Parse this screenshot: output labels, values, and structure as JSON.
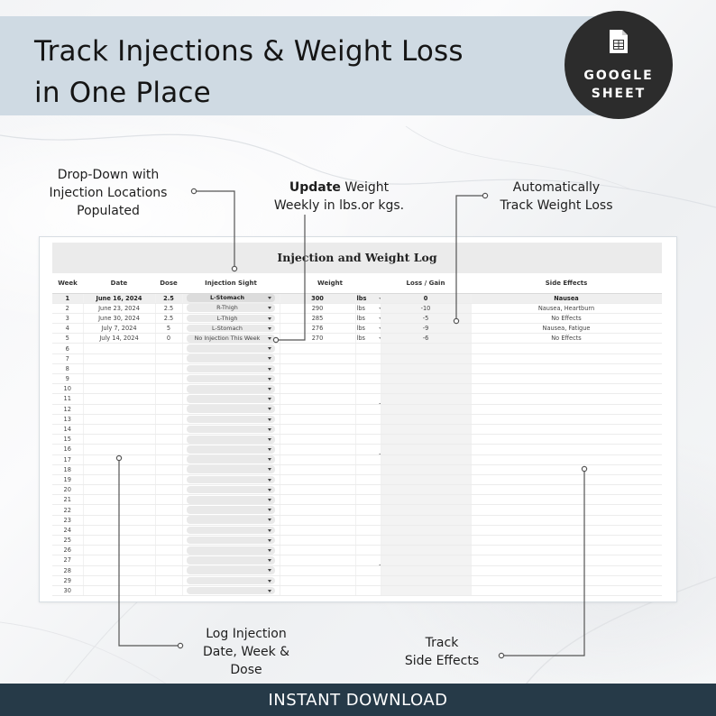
{
  "header": {
    "title_line1": "Track Injections & Weight Loss",
    "title_line2": "in One Place",
    "band_color": "#cfdae3"
  },
  "badge": {
    "icon": "spreadsheet-icon",
    "line1": "GOOGLE",
    "line2": "SHEET"
  },
  "callouts": {
    "dropdown": [
      "Drop-Down with",
      "Injection Locations",
      "Populated"
    ],
    "update_bold": "Update",
    "update_rest1": " Weight",
    "update_line2": "Weekly in lbs.or kgs.",
    "auto": [
      "Automatically",
      "Track Weight Loss"
    ],
    "log": [
      "Log Injection",
      "Date, Week &",
      "Dose"
    ],
    "side": [
      "Track",
      "Side Effects"
    ]
  },
  "sheet": {
    "title": "Injection and Weight Log",
    "headers": {
      "week": "Week",
      "date": "Date",
      "dose": "Dose",
      "site": "Injection Sight",
      "weight": "Weight",
      "loss": "Loss / Gain",
      "side": "Side Effects"
    },
    "rows": [
      {
        "week": "1",
        "date": "June 16, 2024",
        "dose": "2.5",
        "site": "L-Stomach",
        "weight": "300",
        "unit": "lbs",
        "loss": "0",
        "side": "Nausea"
      },
      {
        "week": "2",
        "date": "June 23, 2024",
        "dose": "2.5",
        "site": "R-Thigh",
        "weight": "290",
        "unit": "lbs",
        "loss": "-10",
        "side": "Nausea, Heartburn"
      },
      {
        "week": "3",
        "date": "June 30, 2024",
        "dose": "2.5",
        "site": "L-Thigh",
        "weight": "285",
        "unit": "lbs",
        "loss": "-5",
        "side": "No Effects"
      },
      {
        "week": "4",
        "date": "July 7, 2024",
        "dose": "5",
        "site": "L-Stomach",
        "weight": "276",
        "unit": "lbs",
        "loss": "-9",
        "side": "Nausea, Fatigue"
      },
      {
        "week": "5",
        "date": "July 14, 2024",
        "dose": "0",
        "site": "No Injection This Week",
        "weight": "270",
        "unit": "lbs",
        "loss": "-6",
        "side": "No Effects"
      }
    ],
    "empty_weeks": [
      "6",
      "7",
      "8",
      "9",
      "10",
      "11",
      "12",
      "13",
      "14",
      "15",
      "16",
      "17",
      "18",
      "19",
      "20",
      "21",
      "22",
      "23",
      "24",
      "25",
      "26",
      "27",
      "28",
      "29",
      "30"
    ]
  },
  "footer": {
    "text": "INSTANT DOWNLOAD",
    "color": "#263a48"
  }
}
